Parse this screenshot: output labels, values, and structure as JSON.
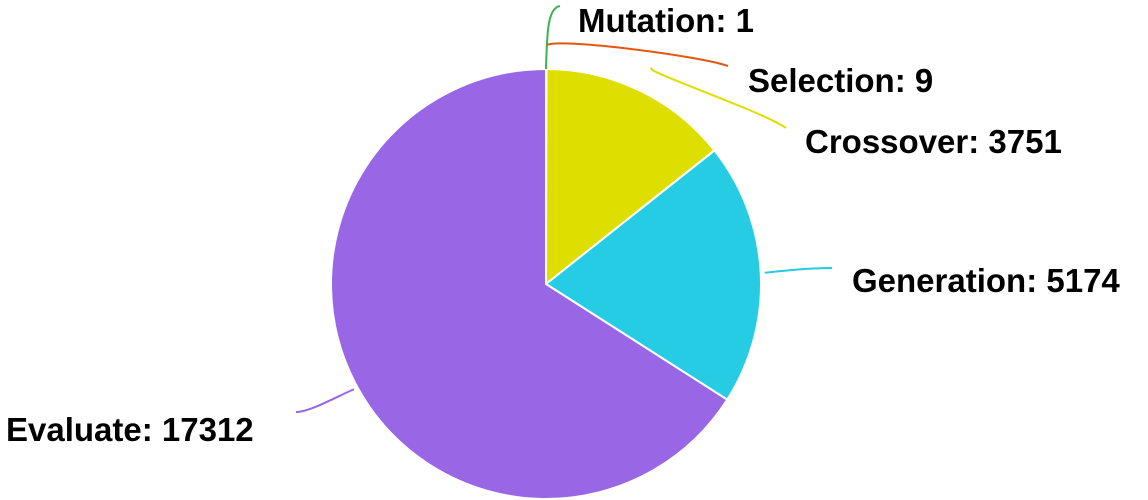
{
  "chart_data": {
    "type": "pie",
    "title": "",
    "start_angle_deg": 0,
    "direction": "clockwise",
    "slices": [
      {
        "label": "Mutation",
        "value": 1,
        "display": "Mutation: 1",
        "color": "#3cb44b"
      },
      {
        "label": "Selection",
        "value": 9,
        "display": "Selection: 9",
        "color": "#e6550d"
      },
      {
        "label": "Crossover",
        "value": 3751,
        "display": "Crossover: 3751",
        "color": "#dede00"
      },
      {
        "label": "Generation",
        "value": 5174,
        "display": "Generation: 5174",
        "color": "#26cbe4"
      },
      {
        "label": "Evaluate",
        "value": 17312,
        "display": "Evaluate: 17312",
        "color": "#9966e6"
      }
    ],
    "legend": "none",
    "labels": "outside with leader lines"
  }
}
